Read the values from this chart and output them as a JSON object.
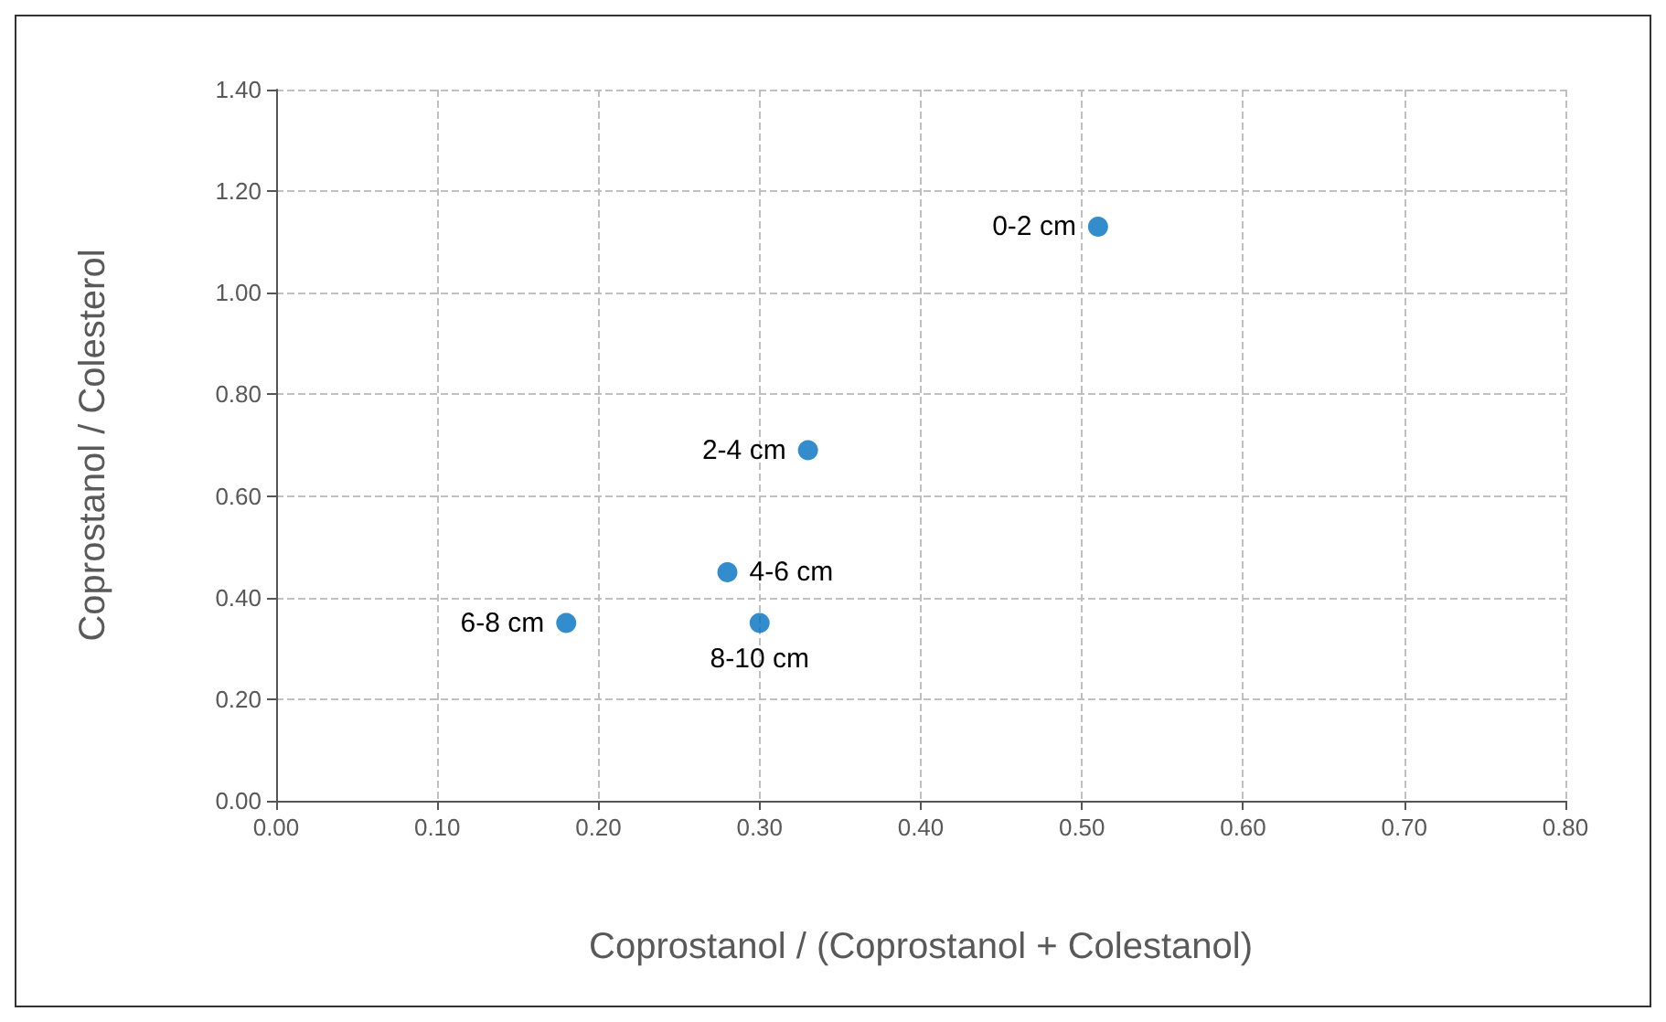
{
  "chart_data": {
    "type": "scatter",
    "xlabel": "Coprostanol / (Coprostanol + Colestanol)",
    "ylabel": "Coprostanol / Colesterol",
    "x": [
      0.51,
      0.33,
      0.28,
      0.3,
      0.18
    ],
    "series": [
      {
        "color": "#0070c0",
        "values": [
          1.13,
          0.69,
          0.45,
          0.35,
          0.35
        ]
      }
    ],
    "annotations": [
      {
        "text": "0-2 cm",
        "x": 0.51,
        "y": 1.13
      },
      {
        "text": "2-4 cm",
        "x": 0.33,
        "y": 0.69
      },
      {
        "text": "4-6 cm",
        "x": 0.28,
        "y": 0.45
      },
      {
        "text": "8-10 cm",
        "x": 0.3,
        "y": 0.35
      },
      {
        "text": "6-8 cm",
        "x": 0.18,
        "y": 0.35
      }
    ],
    "xlim": [
      0,
      0.8
    ],
    "xticks": [
      {
        "value": 0,
        "label": "0.00"
      },
      {
        "value": 0.1,
        "label": "0.10"
      },
      {
        "value": 0.2,
        "label": "0.20"
      },
      {
        "value": 0.3,
        "label": "0.30"
      },
      {
        "value": 0.4,
        "label": "0.40"
      },
      {
        "value": 0.5,
        "label": "0.50"
      },
      {
        "value": 0.6,
        "label": "0.60"
      },
      {
        "value": 0.7,
        "label": "0.70"
      },
      {
        "value": 0.8,
        "label": "0.80"
      }
    ],
    "ylim": [
      0,
      1.4
    ],
    "yticks": [
      {
        "value": 0,
        "label": "0.00"
      },
      {
        "value": 0.2,
        "label": "0.20"
      },
      {
        "value": 0.4,
        "label": "0.40"
      },
      {
        "value": 0.6,
        "label": "0.60"
      },
      {
        "value": 0.8,
        "label": "0.80"
      },
      {
        "value": 1.0,
        "label": "1.00"
      },
      {
        "value": 1.2,
        "label": "1.20"
      },
      {
        "value": 1.4,
        "label": "1.40"
      }
    ],
    "grid": true,
    "marker": "circle"
  }
}
